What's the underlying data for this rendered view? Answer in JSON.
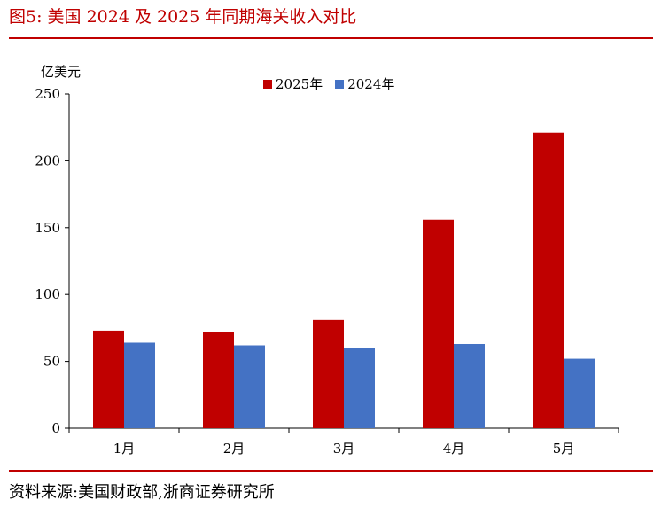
{
  "figure": {
    "title": "图5:   美国 2024 及 2025 年同期海关收入对比",
    "source": "资料来源:美国财政部,浙商证券研究所"
  },
  "chart_data": {
    "type": "bar",
    "categories": [
      "1月",
      "2月",
      "3月",
      "4月",
      "5月"
    ],
    "series": [
      {
        "name": "2025年",
        "color": "#c00000",
        "values": [
          73,
          72,
          81,
          156,
          221
        ]
      },
      {
        "name": "2024年",
        "color": "#4472c4",
        "values": [
          64,
          62,
          60,
          63,
          52
        ]
      }
    ],
    "ylabel": "亿美元",
    "xlabel": "",
    "ylim": [
      0,
      250
    ],
    "yticks": [
      0,
      50,
      100,
      150,
      200,
      250
    ],
    "grid": false,
    "legend": "top-center"
  }
}
